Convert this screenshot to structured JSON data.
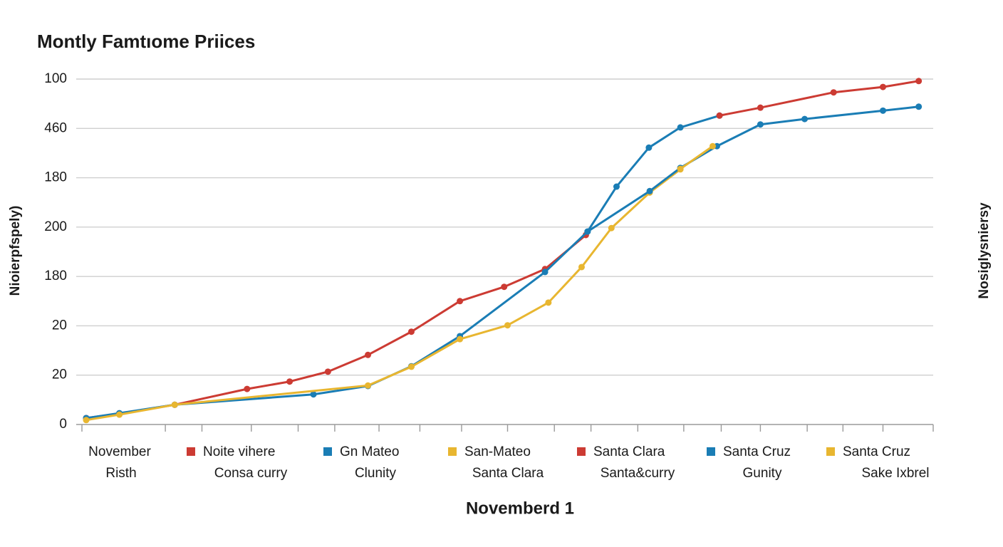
{
  "chart_data": {
    "type": "line",
    "title": "Montly Famtıome Priices",
    "y_label": "Nioierpfspely)",
    "y2_label": "Nosiglysniersy",
    "x_label": "Novemberd 1",
    "x_category_label": [
      "November",
      "Risth"
    ],
    "xlim": [
      0,
      100
    ],
    "xticks": [
      0,
      9.8,
      14.1,
      19.9,
      25.4,
      29.7,
      34.9,
      39.7,
      44.6,
      50,
      55.5,
      59.8,
      65.3,
      70.7,
      75.1,
      79.7,
      85.2,
      89.4,
      94.1,
      100
    ],
    "ylim": [
      0,
      7
    ],
    "yticks": [
      {
        "value": 0,
        "label": "0"
      },
      {
        "value": 1,
        "label": "20"
      },
      {
        "value": 2,
        "label": "20"
      },
      {
        "value": 3,
        "label": "180"
      },
      {
        "value": 4,
        "label": "200"
      },
      {
        "value": 5,
        "label": "180"
      },
      {
        "value": 6,
        "label": "460"
      },
      {
        "value": 7,
        "label": "100"
      }
    ],
    "grid": true,
    "series": [
      {
        "name": "Noite vihere",
        "name_line2": "Consa curry",
        "color": "#cc3b33",
        "x": [
          0.5,
          4.4,
          10.9,
          19.4,
          24.4,
          28.9,
          33.6,
          38.7,
          44.4,
          49.6,
          54.4,
          59.2
        ],
        "values": [
          0.13,
          0.22,
          0.4,
          0.72,
          0.87,
          1.07,
          1.41,
          1.88,
          2.5,
          2.79,
          3.15,
          3.84
        ]
      },
      {
        "name": "Gn Mateo",
        "name_line2": "Clunity",
        "color": "#1a7db5",
        "x": [
          0.5,
          4.4,
          10.9,
          27.2,
          33.6,
          38.7,
          44.4,
          54.4,
          59.4,
          62.8,
          66.6,
          70.3,
          74.9
        ],
        "values": [
          0.13,
          0.23,
          0.4,
          0.61,
          0.78,
          1.18,
          1.79,
          3.09,
          3.91,
          4.82,
          5.61,
          6.02,
          6.26
        ]
      },
      {
        "name": "San-Mateo",
        "name_line2": "Santa Clara",
        "color": "#e8b630",
        "x": [
          0.5,
          4.4,
          10.9,
          33.6,
          38.7,
          44.4,
          50,
          54.8,
          58.7,
          62.2,
          66.7,
          70.3
        ],
        "values": [
          0.09,
          0.2,
          0.4,
          0.79,
          1.17,
          1.73,
          2.01,
          2.47,
          3.19,
          3.98,
          4.7,
          5.17
        ]
      },
      {
        "name": "Santa Clara",
        "name_line2": "Santa&curry",
        "color": "#cc3b33",
        "x": [
          74.9,
          79.7,
          88.3,
          94.1,
          98.3
        ],
        "values": [
          6.26,
          6.42,
          6.73,
          6.84,
          6.96
        ]
      },
      {
        "name": "Santa Cruz",
        "name_line2": "Gunity",
        "color": "#1a7db5",
        "x": [
          59.4,
          66.7,
          70.3,
          74.6,
          79.7,
          84.9,
          94.1,
          98.3
        ],
        "values": [
          3.91,
          4.73,
          5.2,
          5.64,
          6.08,
          6.19,
          6.36,
          6.44
        ]
      },
      {
        "name": "Santa Cruz",
        "name_line2": "Sake Ixbrel",
        "color": "#e8b630",
        "x": [
          70.3,
          74.1
        ],
        "values": [
          5.18,
          5.64
        ]
      }
    ]
  }
}
